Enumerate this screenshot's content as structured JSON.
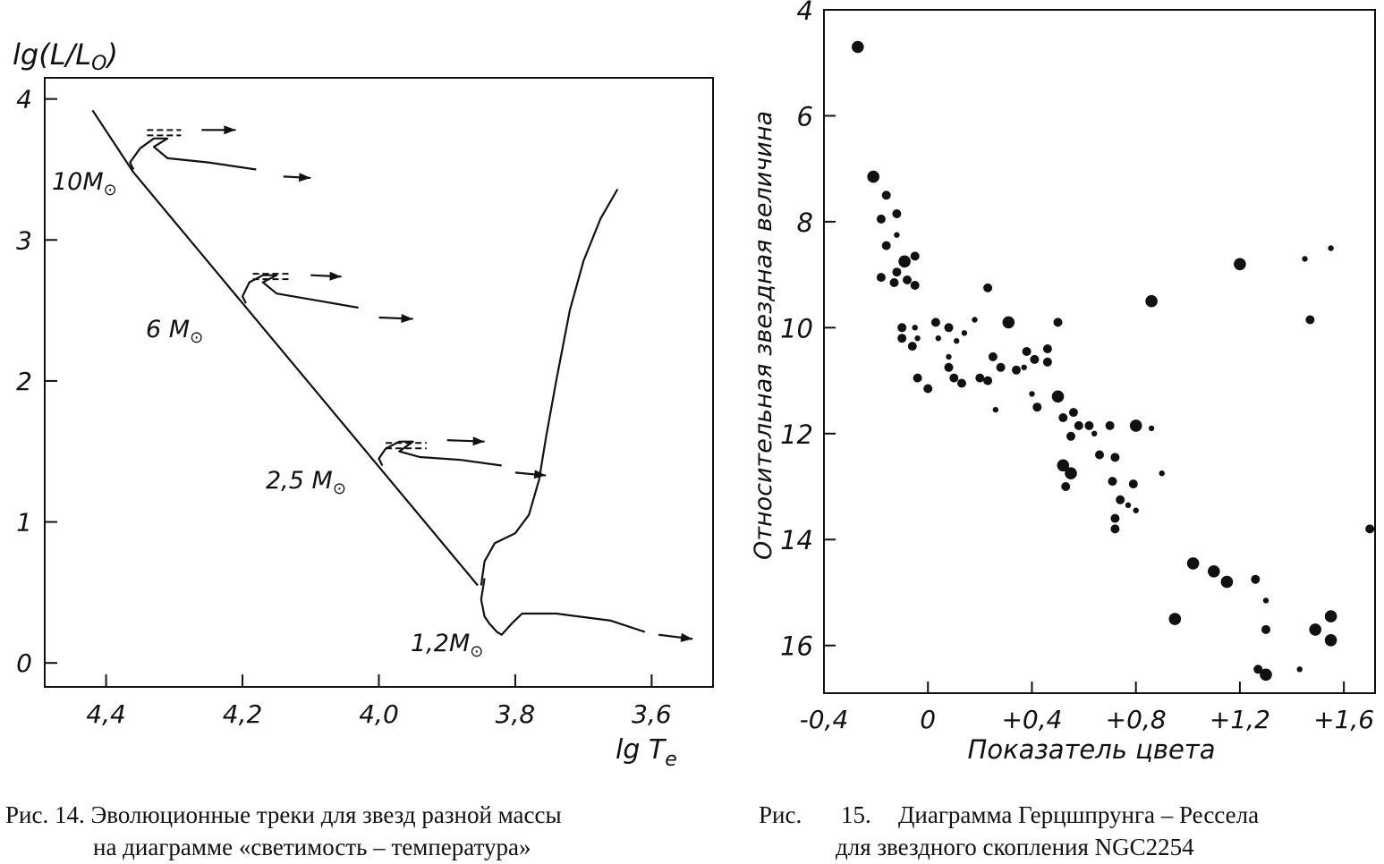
{
  "chart_data": [
    {
      "type": "line",
      "title": "",
      "xlabel": "lg T_e",
      "ylabel": "lg(L/L_O)",
      "x_reversed": true,
      "xlim": [
        4.49,
        3.51
      ],
      "ylim": [
        -0.17,
        4.15
      ],
      "x_ticks": [
        4.4,
        4.2,
        4.0,
        3.8,
        3.6
      ],
      "x_tick_labels": [
        "4,4",
        "4,2",
        "4,0",
        "3,8",
        "3,6"
      ],
      "y_ticks": [
        0,
        1,
        2,
        3,
        4
      ],
      "y_tick_labels": [
        "0",
        "1",
        "2",
        "3",
        "4"
      ],
      "main_sequence": [
        [
          4.42,
          3.92
        ],
        [
          4.36,
          3.48
        ],
        [
          3.855,
          0.55
        ]
      ],
      "series": [
        {
          "name": "10M⊙",
          "label": "10M⊙",
          "track": [
            [
              4.36,
              3.5
            ],
            [
              4.365,
              3.55
            ],
            [
              4.35,
              3.65
            ],
            [
              4.33,
              3.72
            ],
            [
              4.31,
              3.72
            ],
            [
              4.33,
              3.66
            ],
            [
              4.31,
              3.58
            ],
            [
              4.25,
              3.55
            ],
            [
              4.18,
              3.5
            ]
          ],
          "dashed_track": [
            [
              4.34,
              3.78
            ],
            [
              4.29,
              3.78
            ]
          ],
          "arrow_top": [
            [
              4.26,
              3.78
            ],
            [
              4.21,
              3.78
            ]
          ],
          "arrow_bottom": [
            [
              4.14,
              3.45
            ],
            [
              4.1,
              3.44
            ]
          ]
        },
        {
          "name": "6M⊙",
          "label": "6M⊙",
          "track": [
            [
              4.195,
              2.55
            ],
            [
              4.2,
              2.6
            ],
            [
              4.19,
              2.7
            ],
            [
              4.17,
              2.75
            ],
            [
              4.15,
              2.75
            ],
            [
              4.17,
              2.7
            ],
            [
              4.15,
              2.62
            ],
            [
              4.09,
              2.57
            ],
            [
              4.03,
              2.52
            ]
          ],
          "dashed_track": [
            [
              4.185,
              2.76
            ],
            [
              4.13,
              2.76
            ]
          ],
          "arrow_top": [
            [
              4.1,
              2.75
            ],
            [
              4.055,
              2.74
            ]
          ],
          "arrow_bottom": [
            [
              4.0,
              2.45
            ],
            [
              3.95,
              2.44
            ]
          ]
        },
        {
          "name": "2,5M⊙",
          "label": "2,5M⊙",
          "track": [
            [
              3.995,
              1.4
            ],
            [
              4.0,
              1.45
            ],
            [
              3.99,
              1.52
            ],
            [
              3.97,
              1.57
            ],
            [
              3.95,
              1.57
            ],
            [
              3.97,
              1.5
            ],
            [
              3.94,
              1.46
            ],
            [
              3.88,
              1.44
            ],
            [
              3.82,
              1.4
            ]
          ],
          "dashed_track": [
            [
              3.99,
              1.56
            ],
            [
              3.93,
              1.56
            ]
          ],
          "arrow_top": [
            [
              3.9,
              1.58
            ],
            [
              3.845,
              1.57
            ]
          ],
          "arrow_bottom": [
            [
              3.8,
              1.35
            ],
            [
              3.755,
              1.33
            ]
          ]
        },
        {
          "name": "1,2M⊙",
          "label": "1,2M⊙",
          "track": [
            [
              3.85,
              0.55
            ],
            [
              3.845,
              0.72
            ],
            [
              3.83,
              0.85
            ],
            [
              3.8,
              0.92
            ],
            [
              3.78,
              1.05
            ],
            [
              3.765,
              1.3
            ],
            [
              3.755,
              1.6
            ],
            [
              3.74,
              2.0
            ],
            [
              3.72,
              2.5
            ],
            [
              3.7,
              2.85
            ],
            [
              3.675,
              3.15
            ],
            [
              3.65,
              3.36
            ]
          ],
          "lower_track": [
            [
              3.845,
              0.6
            ],
            [
              3.85,
              0.45
            ],
            [
              3.845,
              0.33
            ],
            [
              3.838,
              0.28
            ],
            [
              3.827,
              0.22
            ],
            [
              3.82,
              0.2
            ],
            [
              3.805,
              0.28
            ],
            [
              3.79,
              0.35
            ],
            [
              3.74,
              0.35
            ],
            [
              3.66,
              0.3
            ],
            [
              3.61,
              0.22
            ]
          ],
          "arrow_bottom": [
            [
              3.59,
              0.2
            ],
            [
              3.54,
              0.17
            ]
          ]
        }
      ]
    },
    {
      "type": "scatter",
      "title": "",
      "xlabel": "Показатель цвета",
      "ylabel": "Относительная звездная величина",
      "xlim": [
        -0.4,
        1.72
      ],
      "ylim": [
        16.9,
        4.0
      ],
      "y_reversed": true,
      "x_ticks": [
        -0.4,
        0,
        0.4,
        0.8,
        1.2,
        1.6
      ],
      "x_tick_labels": [
        "-0,4",
        "0",
        "+0,4",
        "+0,8",
        "+1,2",
        "+1,6"
      ],
      "y_ticks": [
        4,
        6,
        8,
        10,
        12,
        14,
        16
      ],
      "y_tick_labels": [
        "4",
        "6",
        "8",
        "10",
        "12",
        "14",
        "16"
      ],
      "points": [
        [
          -0.27,
          4.7
        ],
        [
          -0.21,
          7.15
        ],
        [
          -0.16,
          7.5
        ],
        [
          -0.18,
          7.95
        ],
        [
          -0.12,
          7.85
        ],
        [
          -0.12,
          8.25
        ],
        [
          -0.16,
          8.45
        ],
        [
          -0.09,
          8.75
        ],
        [
          -0.05,
          8.65
        ],
        [
          -0.12,
          8.95
        ],
        [
          -0.18,
          9.05
        ],
        [
          -0.13,
          9.15
        ],
        [
          -0.08,
          9.1
        ],
        [
          -0.05,
          9.2
        ],
        [
          -0.1,
          10.0
        ],
        [
          -0.05,
          10.0
        ],
        [
          -0.1,
          10.2
        ],
        [
          -0.04,
          10.2
        ],
        [
          -0.06,
          10.35
        ],
        [
          0.03,
          9.9
        ],
        [
          0.08,
          10.0
        ],
        [
          0.04,
          10.2
        ],
        [
          0.11,
          10.25
        ],
        [
          0.14,
          10.1
        ],
        [
          0.18,
          9.85
        ],
        [
          0.23,
          9.25
        ],
        [
          0.08,
          10.55
        ],
        [
          -0.04,
          10.95
        ],
        [
          0.0,
          11.15
        ],
        [
          0.08,
          10.75
        ],
        [
          0.1,
          10.95
        ],
        [
          0.13,
          11.05
        ],
        [
          0.2,
          10.95
        ],
        [
          0.25,
          10.55
        ],
        [
          0.28,
          10.75
        ],
        [
          0.23,
          11.0
        ],
        [
          0.31,
          9.9
        ],
        [
          0.34,
          10.8
        ],
        [
          0.37,
          10.75
        ],
        [
          0.38,
          10.45
        ],
        [
          0.41,
          10.6
        ],
        [
          0.4,
          11.25
        ],
        [
          0.42,
          11.5
        ],
        [
          0.46,
          10.4
        ],
        [
          0.46,
          10.65
        ],
        [
          0.26,
          11.55
        ],
        [
          0.5,
          9.9
        ],
        [
          0.5,
          11.3
        ],
        [
          0.52,
          11.7
        ],
        [
          0.56,
          11.6
        ],
        [
          0.58,
          11.85
        ],
        [
          0.55,
          12.05
        ],
        [
          0.62,
          11.85
        ],
        [
          0.64,
          12.0
        ],
        [
          0.66,
          12.4
        ],
        [
          0.72,
          12.45
        ],
        [
          0.7,
          11.85
        ],
        [
          0.8,
          11.85
        ],
        [
          0.86,
          11.9
        ],
        [
          0.52,
          12.6
        ],
        [
          0.55,
          12.75
        ],
        [
          0.53,
          13.0
        ],
        [
          0.71,
          12.9
        ],
        [
          0.79,
          12.95
        ],
        [
          0.74,
          13.25
        ],
        [
          0.77,
          13.35
        ],
        [
          0.8,
          13.45
        ],
        [
          0.72,
          13.6
        ],
        [
          0.72,
          13.8
        ],
        [
          0.9,
          12.75
        ],
        [
          0.86,
          9.5
        ],
        [
          1.2,
          8.8
        ],
        [
          1.45,
          8.7
        ],
        [
          1.55,
          8.5
        ],
        [
          1.47,
          9.85
        ],
        [
          1.7,
          13.8
        ],
        [
          1.02,
          14.45
        ],
        [
          1.1,
          14.6
        ],
        [
          1.15,
          14.8
        ],
        [
          1.26,
          14.75
        ],
        [
          0.95,
          15.5
        ],
        [
          1.3,
          15.15
        ],
        [
          1.3,
          15.7
        ],
        [
          1.27,
          16.45
        ],
        [
          1.3,
          16.55
        ],
        [
          1.43,
          16.45
        ],
        [
          1.49,
          15.7
        ],
        [
          1.55,
          15.45
        ],
        [
          1.55,
          15.9
        ]
      ],
      "point_sizes": [
        "l",
        "l",
        "m",
        "m",
        "m",
        "s",
        "m",
        "l",
        "m",
        "m",
        "m",
        "m",
        "m",
        "m",
        "m",
        "s",
        "m",
        "s",
        "m",
        "m",
        "m",
        "s",
        "s",
        "s",
        "s",
        "m",
        "s",
        "m",
        "m",
        "m",
        "m",
        "m",
        "m",
        "m",
        "m",
        "m",
        "l",
        "m",
        "s",
        "m",
        "m",
        "s",
        "m",
        "m",
        "m",
        "s",
        "m",
        "l",
        "m",
        "m",
        "m",
        "m",
        "m",
        "s",
        "m",
        "m",
        "m",
        "l",
        "s",
        "l",
        "l",
        "m",
        "m",
        "m",
        "m",
        "s",
        "s",
        "m",
        "m",
        "s",
        "l",
        "l",
        "s",
        "s",
        "m",
        "m",
        "l",
        "l",
        "l",
        "m",
        "l",
        "s",
        "m",
        "m",
        "l",
        "s",
        "l",
        "l",
        "l"
      ]
    }
  ],
  "figure14": {
    "y_axis_title": "lg(L/L",
    "y_axis_title_sub": "O",
    "y_axis_title_end": ")",
    "x_axis_title_main": "lg T",
    "x_axis_title_sub": "e",
    "labels": [
      {
        "num": "10M",
        "sun": "⊙"
      },
      {
        "num": "6 M",
        "sun": "⊙"
      },
      {
        "num": "2,5 M",
        "sun": "⊙"
      },
      {
        "num": "1,2M",
        "sun": "⊙"
      }
    ],
    "caption_line1": "Рис. 14. Эволюционные треки для звезд разной массы",
    "caption_line2": "на диаграмме «светимость – температура»"
  },
  "figure15": {
    "y_axis_title": "Относительная звездная величина",
    "x_axis_title": "Показатель цвета",
    "caption_line1_a": "Рис.",
    "caption_line1_b": "15.",
    "caption_line1_c": "Диаграмма Герцшпрунга – Рессела",
    "caption_line2": "для звездного скопления NGC2254"
  },
  "colors": {
    "ink": "#111111",
    "paper": "#ffffff"
  }
}
